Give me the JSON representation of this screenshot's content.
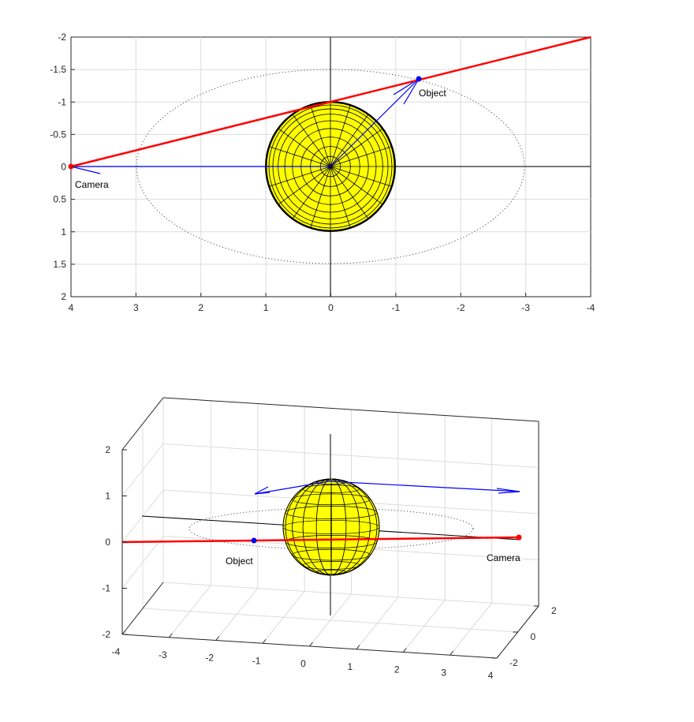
{
  "colors": {
    "sight_line": "#ff0000",
    "vector": "#0000ff",
    "sphere_face": "#ffff00",
    "sphere_edge": "#000000",
    "grid": "#dcdcdc",
    "axis": "#262626",
    "orbit": "#333333"
  },
  "top_plot": {
    "x_ticks": [
      "4",
      "3",
      "2",
      "1",
      "0",
      "-1",
      "-2",
      "-3",
      "-4"
    ],
    "y_ticks": [
      "-2",
      "-1.5",
      "-1",
      "-0.5",
      "0",
      "0.5",
      "1",
      "1.5",
      "2"
    ],
    "camera_label": "Camera",
    "object_label": "Object"
  },
  "bottom_plot": {
    "x_ticks": [
      "-4",
      "-3",
      "-2",
      "-1",
      "0",
      "1",
      "2",
      "3",
      "4"
    ],
    "y_ticks": [
      "2",
      "0",
      "-2"
    ],
    "z_ticks": [
      "2",
      "1",
      "0",
      "-1",
      "-2"
    ],
    "camera_label": "Camera",
    "object_label": "Object"
  },
  "chart_data": [
    {
      "type": "scatter",
      "view": "top-down (x reversed, y reversed)",
      "xlim": [
        -4,
        4
      ],
      "ylim": [
        -2,
        2
      ],
      "grid": true,
      "points": [
        {
          "name": "Camera",
          "x": 4,
          "y": 0
        },
        {
          "name": "Object",
          "x": -1.35,
          "y": -1.35
        }
      ],
      "sphere": {
        "center": [
          0,
          0
        ],
        "radius": 1
      },
      "orbit_ellipse": {
        "center": [
          0,
          0
        ],
        "semi_axis_x": 3,
        "semi_axis_y": 1.5
      }
    },
    {
      "type": "scatter",
      "view": "3d",
      "xlim": [
        -4,
        4
      ],
      "ylim": [
        -2,
        2
      ],
      "zlim": [
        -2,
        2
      ],
      "grid": true,
      "points": [
        {
          "name": "Camera",
          "x": 4,
          "y": 0,
          "z": 0
        },
        {
          "name": "Object",
          "x": -1.35,
          "y": -1.35,
          "z": 0
        }
      ]
    }
  ]
}
